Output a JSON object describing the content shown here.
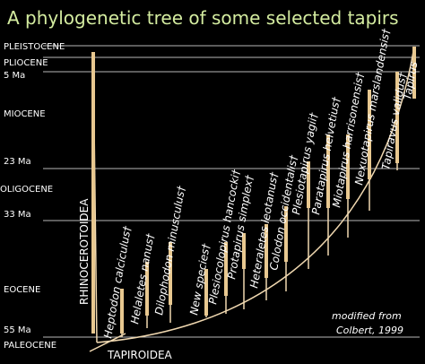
{
  "title": "A phylogenetic tree of some selected tapirs",
  "time_scale": [
    "PLEISTOCENE",
    "PLIOCENE",
    "5 Ma",
    "MIOCENE",
    "23 Ma",
    "OLIGOCENE",
    "33 Ma",
    "EOCENE",
    "55 Ma",
    "PALEOCENE"
  ],
  "outgroup": "RHINOCEROTOIDEA",
  "taxa": [
    "Heptodon calciculus†",
    "Helaletes nanus†",
    "Dilophodon minusculus†",
    "New species†",
    "Plesiocolopirus hancocki†",
    "Protapirus simplex†",
    "Heteraletes leotanus†",
    "Colodon occidentalis†",
    "Plesiotapirus yagii†",
    "Paratapirus helvetius†",
    "Miotapirus harrisonensis†",
    "Nexuotapirus marslandensis†",
    "Tapiravus validus†",
    "Tapirus"
  ],
  "clade": "TAPIROIDEA",
  "caption": [
    "modified from",
    "Colbert, 1999"
  ]
}
